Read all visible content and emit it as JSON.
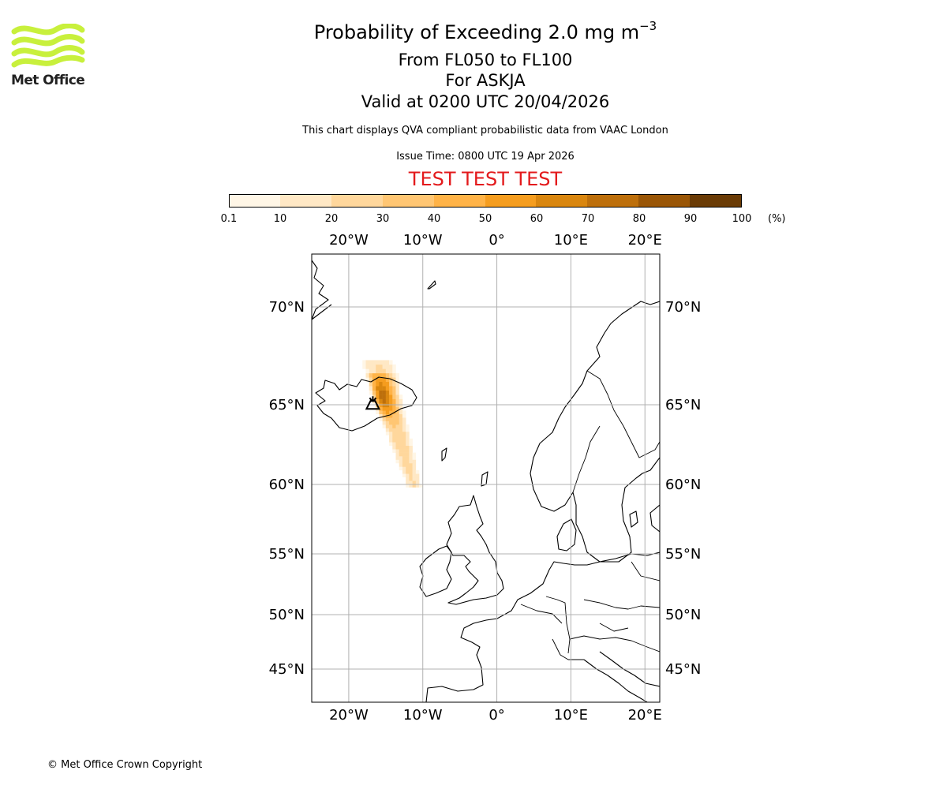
{
  "header": {
    "title_prefix": "Probability of Exceeding 2.0 mg m",
    "title_exponent": "−3",
    "levels": "From FL050 to FL100",
    "volcano": "For ASKJA",
    "valid_time": "Valid at 0200 UTC 20/04/2026",
    "description": "This chart displays QVA compliant probabilistic data from VAAC London",
    "issue_time": "Issue Time: 0800 UTC 19 Apr 2026",
    "test_banner": "TEST TEST TEST"
  },
  "logo": {
    "text": "Met Office",
    "color": "#c8f03c",
    "icon": "met-office-waves-logo"
  },
  "colorbar": {
    "unit": "(%)",
    "ticks": [
      "0.1",
      "10",
      "20",
      "30",
      "40",
      "50",
      "60",
      "70",
      "80",
      "90",
      "100"
    ],
    "colors": [
      "#fff6e6",
      "#ffe8c5",
      "#ffd79c",
      "#ffc673",
      "#ffb347",
      "#f59d1f",
      "#d9860f",
      "#bd6f0b",
      "#9a5606",
      "#6a3b05"
    ]
  },
  "map": {
    "lon_range": [
      -25,
      22
    ],
    "lat_range": [
      42.5,
      73
    ],
    "lon_ticks": [
      {
        "lon": -20,
        "label": "20°W"
      },
      {
        "lon": -10,
        "label": "10°W"
      },
      {
        "lon": 0,
        "label": "0°"
      },
      {
        "lon": 10,
        "label": "10°E"
      },
      {
        "lon": 20,
        "label": "20°E"
      }
    ],
    "lat_ticks": [
      {
        "lat": 70,
        "label": "70°N"
      },
      {
        "lat": 65,
        "label": "65°N"
      },
      {
        "lat": 60,
        "label": "60°N"
      },
      {
        "lat": 55,
        "label": "55°N"
      },
      {
        "lat": 50,
        "label": "50°N"
      },
      {
        "lat": 45,
        "label": "45°N"
      }
    ],
    "volcano": {
      "lon": -16.75,
      "lat": 65.03,
      "icon": "volcano-icon"
    },
    "plume_level_colors": [
      "#fff6e6",
      "#ffe8c5",
      "#ffd79c",
      "#ffc673",
      "#ffb347",
      "#f59d1f",
      "#d9860f",
      "#bd6f0b",
      "#9a5606",
      "#6a3b05"
    ],
    "grid_color": "#b0b0b0",
    "coast_color": "#000000"
  },
  "footer": {
    "copyright": "© Met Office Crown Copyright"
  }
}
